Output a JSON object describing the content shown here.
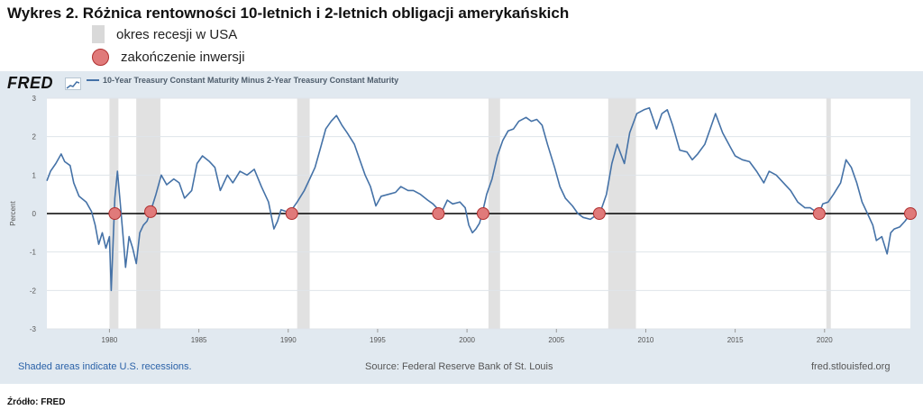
{
  "header": {
    "title": "Wykres 2. Różnica rentowności 10-letnich i 2-letnich obligacji amerykańskich",
    "legend": [
      {
        "label": "okres recesji w USA"
      },
      {
        "label": "zakończenie inwersji"
      }
    ]
  },
  "fred": {
    "logo": "FRED",
    "series_name": "10-Year Treasury Constant Maturity Minus 2-Year Treasury Constant Maturity",
    "shaded_note": "Shaded areas indicate U.S. recessions.",
    "source_note": "Source: Federal Reserve Bank of St. Louis",
    "site": "fred.stlouisfed.org"
  },
  "source_caption": "Źródło: FRED",
  "chart_data": {
    "type": "line",
    "title": "10-Year Treasury Constant Maturity Minus 2-Year Treasury Constant Maturity",
    "xlabel": "",
    "ylabel": "Percent",
    "xlim": [
      1976.5,
      2024.8
    ],
    "ylim": [
      -3,
      3
    ],
    "x_ticks": [
      1980,
      1985,
      1990,
      1995,
      2000,
      2005,
      2010,
      2015,
      2020
    ],
    "y_ticks": [
      -3,
      -2,
      -1,
      0,
      1,
      2,
      3
    ],
    "grid": "horizontal",
    "series": [
      {
        "name": "10-Year Treasury Constant Maturity Minus 2-Year Treasury Constant Maturity",
        "color": "#4572a7",
        "points": [
          [
            1976.5,
            0.85
          ],
          [
            1976.7,
            1.1
          ],
          [
            1977.0,
            1.3
          ],
          [
            1977.3,
            1.55
          ],
          [
            1977.5,
            1.35
          ],
          [
            1977.8,
            1.25
          ],
          [
            1978.0,
            0.8
          ],
          [
            1978.3,
            0.45
          ],
          [
            1978.7,
            0.3
          ],
          [
            1979.0,
            0.05
          ],
          [
            1979.2,
            -0.3
          ],
          [
            1979.4,
            -0.8
          ],
          [
            1979.6,
            -0.5
          ],
          [
            1979.8,
            -0.9
          ],
          [
            1980.0,
            -0.6
          ],
          [
            1980.1,
            -2.0
          ],
          [
            1980.3,
            0.4
          ],
          [
            1980.45,
            1.1
          ],
          [
            1980.6,
            0.3
          ],
          [
            1980.8,
            -0.8
          ],
          [
            1980.9,
            -1.4
          ],
          [
            1981.1,
            -0.6
          ],
          [
            1981.3,
            -0.9
          ],
          [
            1981.5,
            -1.3
          ],
          [
            1981.7,
            -0.5
          ],
          [
            1981.9,
            -0.3
          ],
          [
            1982.1,
            -0.2
          ],
          [
            1982.3,
            0.05
          ],
          [
            1982.6,
            0.5
          ],
          [
            1982.9,
            1.0
          ],
          [
            1983.2,
            0.75
          ],
          [
            1983.6,
            0.9
          ],
          [
            1983.9,
            0.8
          ],
          [
            1984.2,
            0.4
          ],
          [
            1984.6,
            0.6
          ],
          [
            1984.9,
            1.3
          ],
          [
            1985.2,
            1.5
          ],
          [
            1985.6,
            1.35
          ],
          [
            1985.9,
            1.2
          ],
          [
            1986.2,
            0.6
          ],
          [
            1986.6,
            1.0
          ],
          [
            1986.9,
            0.8
          ],
          [
            1987.3,
            1.1
          ],
          [
            1987.7,
            1.0
          ],
          [
            1988.1,
            1.15
          ],
          [
            1988.5,
            0.7
          ],
          [
            1988.9,
            0.3
          ],
          [
            1989.2,
            -0.4
          ],
          [
            1989.4,
            -0.2
          ],
          [
            1989.6,
            0.1
          ],
          [
            1989.9,
            0.05
          ],
          [
            1990.2,
            0.1
          ],
          [
            1990.5,
            0.3
          ],
          [
            1990.9,
            0.6
          ],
          [
            1991.2,
            0.9
          ],
          [
            1991.5,
            1.2
          ],
          [
            1991.8,
            1.7
          ],
          [
            1992.1,
            2.2
          ],
          [
            1992.4,
            2.4
          ],
          [
            1992.7,
            2.55
          ],
          [
            1993.0,
            2.3
          ],
          [
            1993.3,
            2.1
          ],
          [
            1993.7,
            1.8
          ],
          [
            1994.0,
            1.4
          ],
          [
            1994.3,
            1.0
          ],
          [
            1994.6,
            0.7
          ],
          [
            1994.9,
            0.2
          ],
          [
            1995.2,
            0.45
          ],
          [
            1995.6,
            0.5
          ],
          [
            1996.0,
            0.55
          ],
          [
            1996.3,
            0.7
          ],
          [
            1996.7,
            0.6
          ],
          [
            1997.0,
            0.6
          ],
          [
            1997.4,
            0.5
          ],
          [
            1997.8,
            0.35
          ],
          [
            1998.1,
            0.25
          ],
          [
            1998.4,
            0.1
          ],
          [
            1998.6,
            0.05
          ],
          [
            1998.9,
            0.35
          ],
          [
            1999.2,
            0.25
          ],
          [
            1999.6,
            0.3
          ],
          [
            1999.9,
            0.15
          ],
          [
            2000.1,
            -0.3
          ],
          [
            2000.3,
            -0.5
          ],
          [
            2000.5,
            -0.4
          ],
          [
            2000.7,
            -0.25
          ],
          [
            2000.9,
            0.1
          ],
          [
            2001.1,
            0.5
          ],
          [
            2001.4,
            0.9
          ],
          [
            2001.7,
            1.5
          ],
          [
            2002.0,
            1.9
          ],
          [
            2002.3,
            2.15
          ],
          [
            2002.6,
            2.2
          ],
          [
            2002.9,
            2.4
          ],
          [
            2003.3,
            2.5
          ],
          [
            2003.6,
            2.4
          ],
          [
            2003.9,
            2.45
          ],
          [
            2004.2,
            2.3
          ],
          [
            2004.5,
            1.8
          ],
          [
            2004.9,
            1.2
          ],
          [
            2005.2,
            0.7
          ],
          [
            2005.5,
            0.4
          ],
          [
            2005.9,
            0.2
          ],
          [
            2006.2,
            0.0
          ],
          [
            2006.5,
            -0.1
          ],
          [
            2006.9,
            -0.15
          ],
          [
            2007.2,
            -0.05
          ],
          [
            2007.5,
            0.1
          ],
          [
            2007.8,
            0.5
          ],
          [
            2008.1,
            1.3
          ],
          [
            2008.4,
            1.8
          ],
          [
            2008.8,
            1.3
          ],
          [
            2009.1,
            2.1
          ],
          [
            2009.5,
            2.6
          ],
          [
            2009.9,
            2.7
          ],
          [
            2010.2,
            2.75
          ],
          [
            2010.6,
            2.2
          ],
          [
            2010.9,
            2.6
          ],
          [
            2011.2,
            2.7
          ],
          [
            2011.5,
            2.3
          ],
          [
            2011.9,
            1.65
          ],
          [
            2012.3,
            1.6
          ],
          [
            2012.6,
            1.4
          ],
          [
            2012.9,
            1.55
          ],
          [
            2013.3,
            1.8
          ],
          [
            2013.6,
            2.2
          ],
          [
            2013.9,
            2.6
          ],
          [
            2014.3,
            2.1
          ],
          [
            2014.7,
            1.75
          ],
          [
            2015.0,
            1.5
          ],
          [
            2015.4,
            1.4
          ],
          [
            2015.8,
            1.35
          ],
          [
            2016.2,
            1.1
          ],
          [
            2016.6,
            0.8
          ],
          [
            2016.9,
            1.1
          ],
          [
            2017.3,
            1.0
          ],
          [
            2017.7,
            0.8
          ],
          [
            2018.1,
            0.6
          ],
          [
            2018.5,
            0.3
          ],
          [
            2018.9,
            0.15
          ],
          [
            2019.2,
            0.15
          ],
          [
            2019.5,
            0.05
          ],
          [
            2019.65,
            -0.05
          ],
          [
            2019.9,
            0.25
          ],
          [
            2020.2,
            0.3
          ],
          [
            2020.5,
            0.5
          ],
          [
            2020.9,
            0.8
          ],
          [
            2021.2,
            1.4
          ],
          [
            2021.5,
            1.2
          ],
          [
            2021.8,
            0.8
          ],
          [
            2022.1,
            0.3
          ],
          [
            2022.4,
            0.0
          ],
          [
            2022.7,
            -0.3
          ],
          [
            2022.9,
            -0.7
          ],
          [
            2023.2,
            -0.6
          ],
          [
            2023.5,
            -1.05
          ],
          [
            2023.7,
            -0.5
          ],
          [
            2023.9,
            -0.4
          ],
          [
            2024.2,
            -0.35
          ],
          [
            2024.5,
            -0.2
          ],
          [
            2024.8,
            0.0
          ]
        ]
      }
    ],
    "recessions": [
      [
        1980.0,
        1980.5
      ],
      [
        1981.5,
        1982.85
      ],
      [
        1990.5,
        1991.2
      ],
      [
        2001.2,
        2001.85
      ],
      [
        2007.9,
        2009.45
      ],
      [
        2020.1,
        2020.35
      ]
    ],
    "inversion_ends": [
      [
        1980.3,
        0.0
      ],
      [
        1982.3,
        0.05
      ],
      [
        1990.2,
        0.0
      ],
      [
        1998.4,
        0.0
      ],
      [
        2000.9,
        0.0
      ],
      [
        2007.4,
        0.0
      ],
      [
        2019.7,
        0.0
      ],
      [
        2024.8,
        0.0
      ]
    ]
  }
}
